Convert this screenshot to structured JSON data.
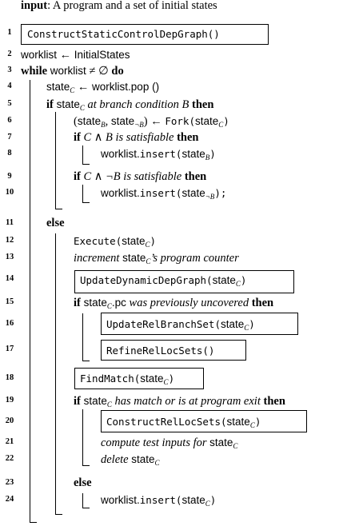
{
  "header": {
    "input_kw": "input",
    "input_text": ": A program and a set of initial states"
  },
  "lines": [
    {
      "n": "1",
      "label": "ConstructStaticControlDepGraph()"
    },
    {
      "n": "2",
      "lhs": "worklist",
      "arrow": " ← ",
      "rhs": "InitialStates"
    },
    {
      "n": "3",
      "kw": "while",
      "text1": " worklist ",
      "op": "≠ ∅",
      "kw2": " do"
    },
    {
      "n": "4",
      "lhs": "state",
      "sub": "C",
      "arrow": " ← ",
      "rhs": "worklist.pop ()"
    },
    {
      "n": "5",
      "kw": "if",
      "var": " state",
      "sub": "C",
      "text": " at branch condition ",
      "B": "B",
      "kw2": " then"
    },
    {
      "n": "6",
      "open": "(",
      "v1": "state",
      "s1": "B",
      "comma": ", ",
      "v2": "state",
      "s2": "¬B",
      "close": ")",
      "arrow": " ← ",
      "fn": "Fork",
      "arg_open": "(",
      "arg": "state",
      "s3": "C",
      "arg_close": ")"
    },
    {
      "n": "7",
      "kw": "if",
      "cond": " C ∧ B",
      "text": " is satisfiable",
      "kw2": " then"
    },
    {
      "n": "8",
      "obj": "worklist.",
      "fn": "insert",
      "arg_open": "(",
      "arg": "state",
      "sub": "B",
      "arg_close": ")"
    },
    {
      "n": "9",
      "kw": "if",
      "cond": " C ∧ ¬B",
      "text": " is satisfiable",
      "kw2": " then"
    },
    {
      "n": "10",
      "obj": "worklist.",
      "fn": "insert",
      "arg_open": "(",
      "arg": "state",
      "sub": "¬B",
      "arg_close": ");"
    },
    {
      "n": "11",
      "kw": "else"
    },
    {
      "n": "12",
      "fn": "Execute",
      "arg_open": "(",
      "arg": "state",
      "sub": "C",
      "arg_close": ")"
    },
    {
      "n": "13",
      "pre": "increment ",
      "var": "state",
      "sub": "C",
      "post": "’s program counter"
    },
    {
      "n": "14",
      "fn": "UpdateDynamicDepGraph",
      "arg_open": "(",
      "arg": "state",
      "sub": "C",
      "arg_close": ")"
    },
    {
      "n": "15",
      "kw": "if",
      "var": " state",
      "sub": "C",
      "mid": ".pc",
      "text": " was previously uncovered",
      "kw2": " then"
    },
    {
      "n": "16",
      "fn": "UpdateRelBranchSet",
      "arg_open": "(",
      "arg": "state",
      "sub": "C",
      "arg_close": ")"
    },
    {
      "n": "17",
      "label": "RefineRelLocSets()"
    },
    {
      "n": "18",
      "fn": "FindMatch",
      "arg_open": "(",
      "arg": "state",
      "sub": "C",
      "arg_close": ")"
    },
    {
      "n": "19",
      "kw": "if",
      "var": " state",
      "sub": "C",
      "text": " has match or is at program exit",
      "kw2": " then"
    },
    {
      "n": "20",
      "fn": "ConstructRelLocSets",
      "arg_open": "(",
      "arg": "state",
      "sub": "C",
      "arg_close": ")"
    },
    {
      "n": "21",
      "text": "compute test inputs for ",
      "var": "state",
      "sub": "C"
    },
    {
      "n": "22",
      "text": "delete ",
      "var": "state",
      "sub": "C"
    },
    {
      "n": "23",
      "kw": "else"
    },
    {
      "n": "24",
      "obj": "worklist.",
      "fn": "insert",
      "arg_open": "(",
      "arg": "state",
      "sub": "C",
      "arg_close": ")"
    }
  ]
}
